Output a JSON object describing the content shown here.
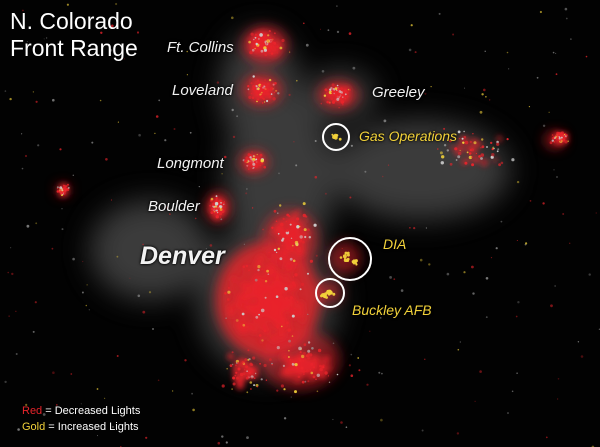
{
  "title_line1": "N. Colorado",
  "title_line2": "Front Range",
  "cities": {
    "ft_collins": "Ft. Collins",
    "loveland": "Loveland",
    "greeley": "Greeley",
    "longmont": "Longmont",
    "boulder": "Boulder",
    "denver": "Denver"
  },
  "features": {
    "gas_operations": "Gas Operations",
    "dia": "DIA",
    "buckley": "Buckley AFB"
  },
  "legend": {
    "red_word": "Red",
    "red_text": " = Decreased Lights",
    "gold_word": "Gold",
    "gold_text": " = Increased Lights"
  },
  "colors": {
    "background": "#020202",
    "decreased_lights": "#e8242b",
    "increased_lights": "#f2d23a",
    "city_label": "#f2f2f2",
    "highlight_circle": "#ffffff"
  }
}
